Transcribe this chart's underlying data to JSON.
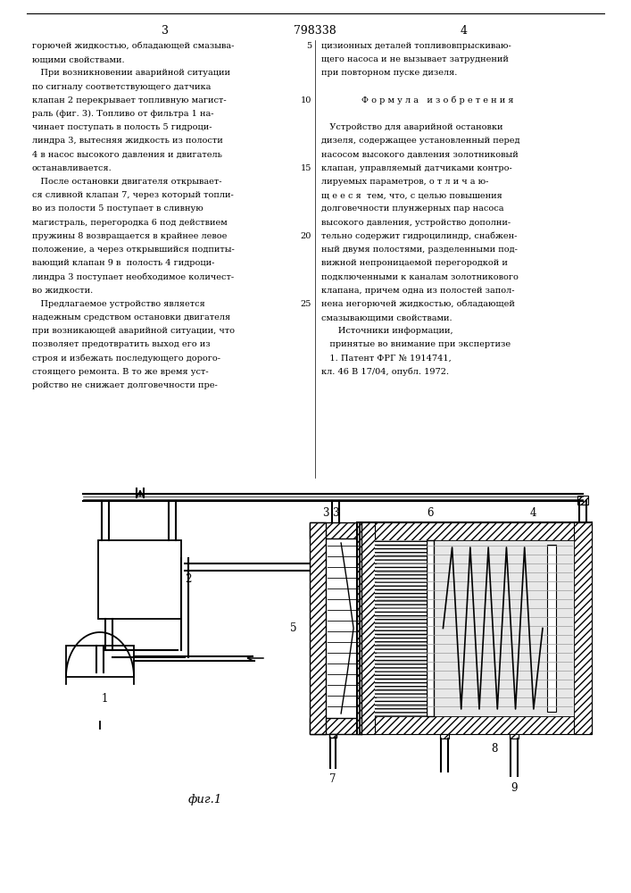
{
  "page_number_left": "3",
  "page_number_center": "798338",
  "page_number_right": "4",
  "left_column_text": [
    "горючей жидкостью, обладающей смазыва-",
    "ющими свойствами.",
    "   При возникновении аварийной ситуации",
    "по сигналу соответствующего датчика",
    "клапан 2 перекрывает топливную магист-",
    "раль (фиг. 3). Топливо от фильтра 1 на-",
    "чинает поступать в полость 5 гидроци-",
    "линдра 3, вытесняя жидкость из полости",
    "4 в насос высокого давления и двигатель",
    "останавливается.",
    "   После остановки двигателя открывает-",
    "ся сливной клапан 7, через который топли-",
    "во из полости 5 поступает в сливную",
    "магистраль, перегородка 6 под действием",
    "пружины 8 возвращается в крайнее левое",
    "положение, а через открывшийся подпиты-",
    "вающий клапан 9 в  полость 4 гидроци-",
    "линдра 3 поступает необходимое количест-",
    "во жидкости.",
    "   Предлагаемое устройство является",
    "надежным средством остановки двигателя",
    "при возникающей аварийной ситуации, что",
    "позволяет предотвратить выход его из",
    "строя и избежать последующего дорого-",
    "стоящего ремонта. В то же время уст-",
    "ройство не снижает долговечности пре-"
  ],
  "right_column_text": [
    "цизионных деталей топливовпрыскиваю-",
    "щего насоса и не вызывает затруднений",
    "при повторном пуске дизеля.",
    "",
    "Ф о р м у л а   и з о б р е т е н и я",
    "",
    "   Устройство для аварийной остановки",
    "дизеля, содержащее установленный перед",
    "насосом высокого давления золотниковый",
    "клапан, управляемый датчиками контро-",
    "лируемых параметров, о т л и ч а ю-",
    "щ е е с я  тем, что, с целью повышения",
    "долговечности плунжерных пар насоса",
    "высокого давления, устройство дополни-",
    "тельно содержит гидроцилиндр, снабжен-",
    "ный двумя полостями, разделенными под-",
    "вижной непроницаемой перегородкой и",
    "подключенными к каналам золотникового",
    "клапана, причем одна из полостей запол-",
    "нена негорючей жидкостью, обладающей",
    "смазывающими свойствами.",
    "      Источники информации,",
    "   принятые во внимание при экспертизе",
    "   1. Патент ФРГ № 1914741,",
    "кл. 46 В 17/04, опубл. 1972."
  ],
  "ln_map": {
    "0": 5,
    "4": 10,
    "9": 15,
    "14": 20,
    "19": 25
  },
  "fig_label": "фиг.1",
  "bg_color": "#ffffff"
}
